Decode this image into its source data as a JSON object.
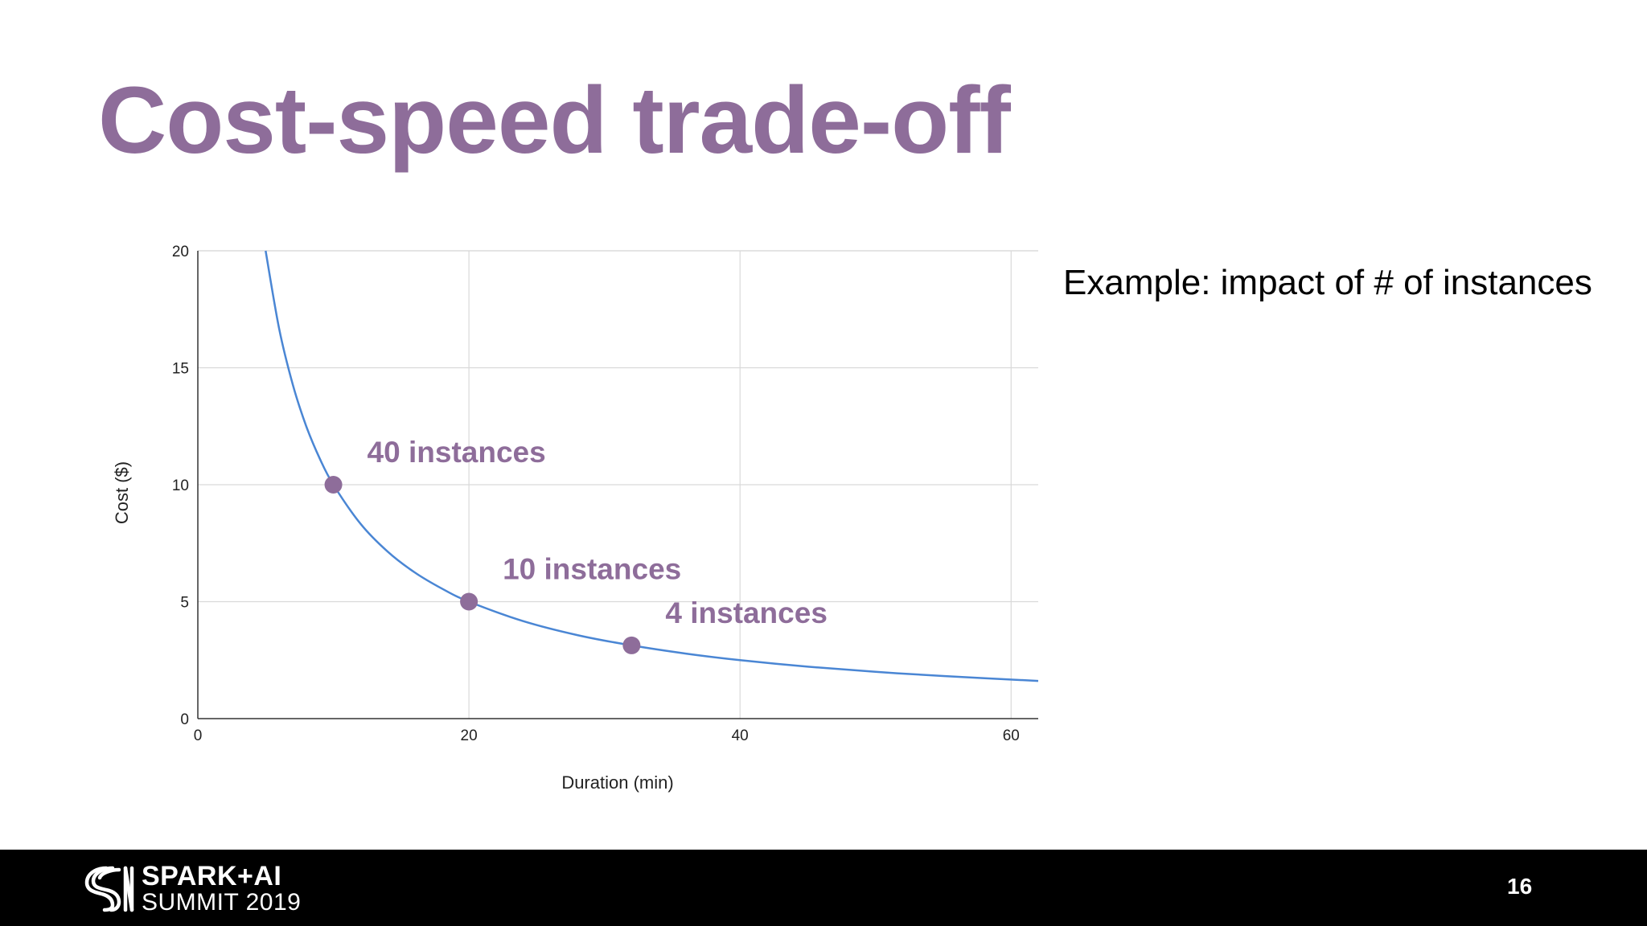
{
  "slide": {
    "title": "Cost-speed trade-off",
    "side_text": "Example: impact of # of instances",
    "page_number": "16"
  },
  "footer": {
    "logo_line1": "SPARK+AI",
    "logo_line2": "SUMMIT 2019"
  },
  "colors": {
    "title": "#8e6d9a",
    "curve": "#4a86d4",
    "points": "#8e6d9a",
    "grid": "#d9d9d9",
    "footer_bg": "#000000"
  },
  "chart_data": {
    "type": "line",
    "title": "",
    "xlabel": "Duration (min)",
    "ylabel": "Cost ($)",
    "xlim": [
      0,
      62
    ],
    "ylim": [
      0,
      20
    ],
    "x_ticks": [
      0,
      20,
      40,
      60
    ],
    "y_ticks": [
      0,
      5,
      10,
      15,
      20
    ],
    "grid": true,
    "series": [
      {
        "x": [
          5,
          6,
          7,
          8,
          9,
          10,
          12,
          14,
          16,
          18,
          20,
          24,
          28,
          32,
          36,
          40,
          45,
          50,
          55,
          62
        ],
        "y": [
          20,
          16.67,
          14.29,
          12.5,
          11.11,
          10,
          8.33,
          7.14,
          6.25,
          5.56,
          5,
          4.17,
          3.57,
          3.13,
          2.78,
          2.5,
          2.22,
          2,
          1.82,
          1.61
        ]
      }
    ],
    "points": [
      {
        "x": 10,
        "y": 10,
        "label": "40 instances"
      },
      {
        "x": 20,
        "y": 5,
        "label": "10 instances"
      },
      {
        "x": 32,
        "y": 3.13,
        "label": "4 instances"
      }
    ]
  }
}
